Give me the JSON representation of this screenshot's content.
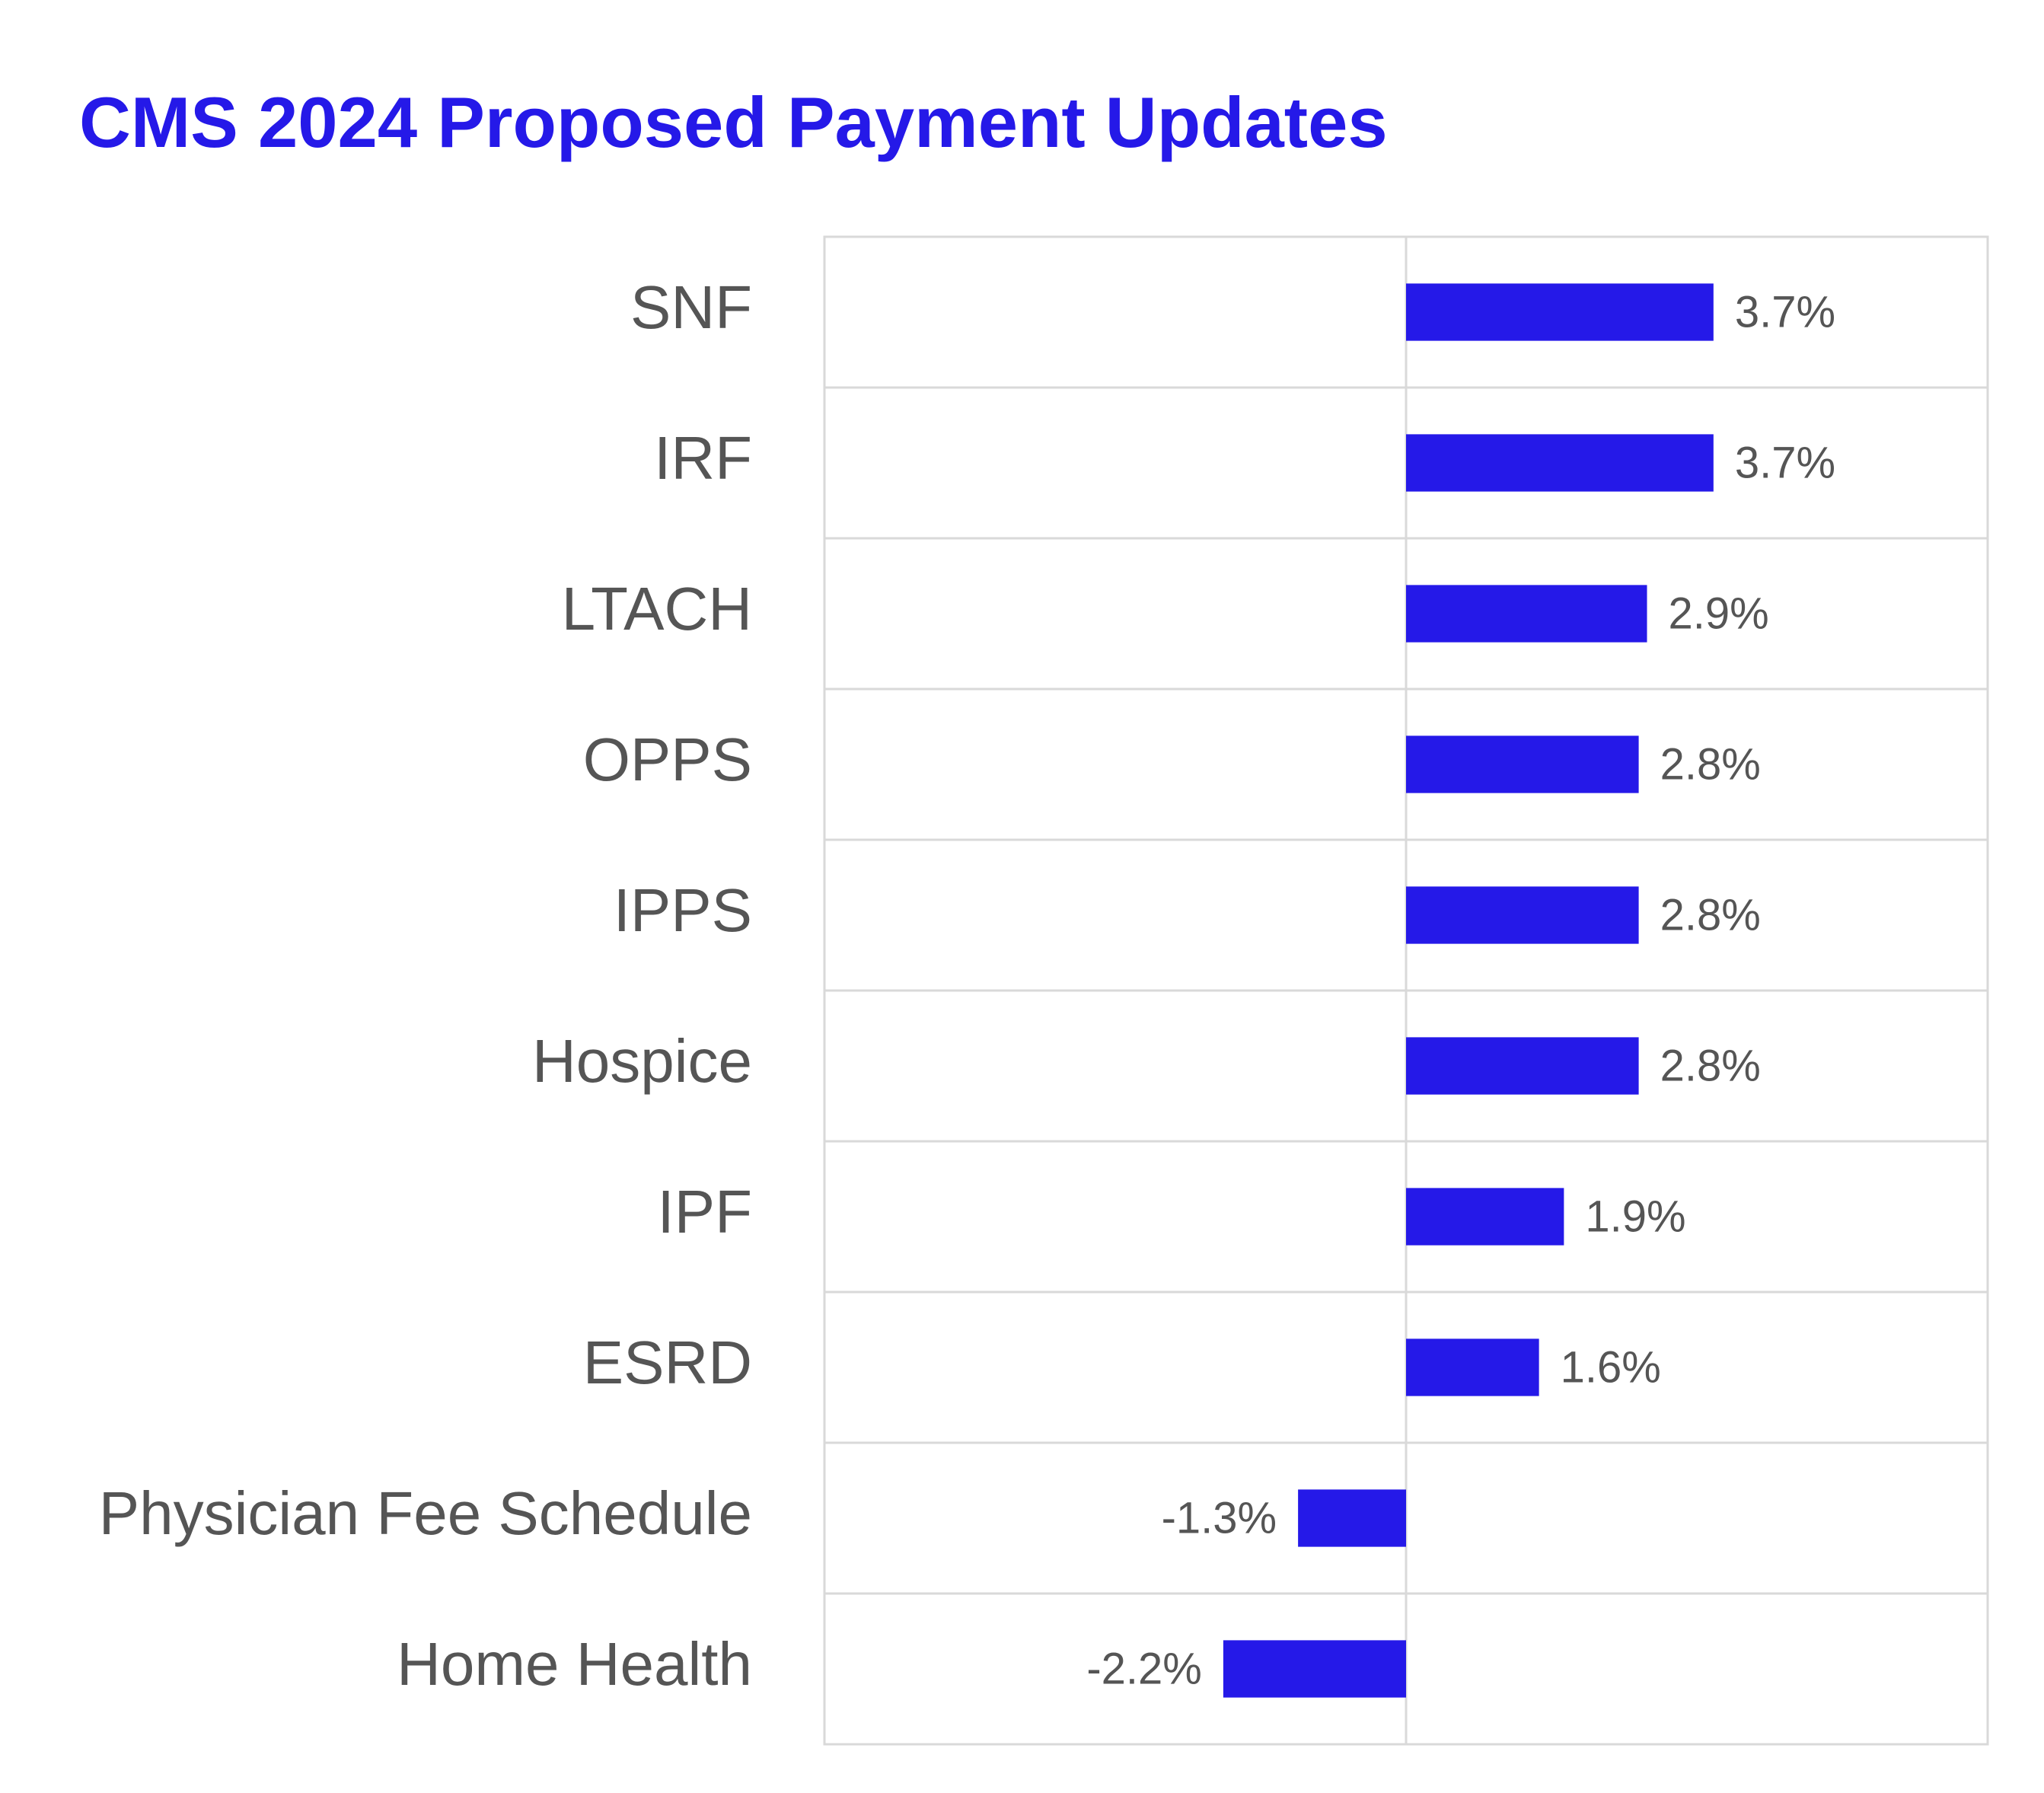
{
  "chart_data": {
    "type": "hbar",
    "title": "CMS 2024 Proposed Payment Updates",
    "categories": [
      "SNF",
      "IRF",
      "LTACH",
      "OPPS",
      "IPPS",
      "Hospice",
      "IPF",
      "ESRD",
      "Physician Fee Schedule",
      "Home Health"
    ],
    "values": [
      3.7,
      3.7,
      2.9,
      2.8,
      2.8,
      2.8,
      1.9,
      1.6,
      -1.3,
      -2.2
    ],
    "value_labels": [
      "3.7%",
      "3.7%",
      "2.9%",
      "2.8%",
      "2.8%",
      "2.8%",
      "1.9%",
      "1.6%",
      "-1.3%",
      "-2.2%"
    ],
    "color": "#2519e8",
    "xlim": [
      -7,
      7
    ]
  }
}
